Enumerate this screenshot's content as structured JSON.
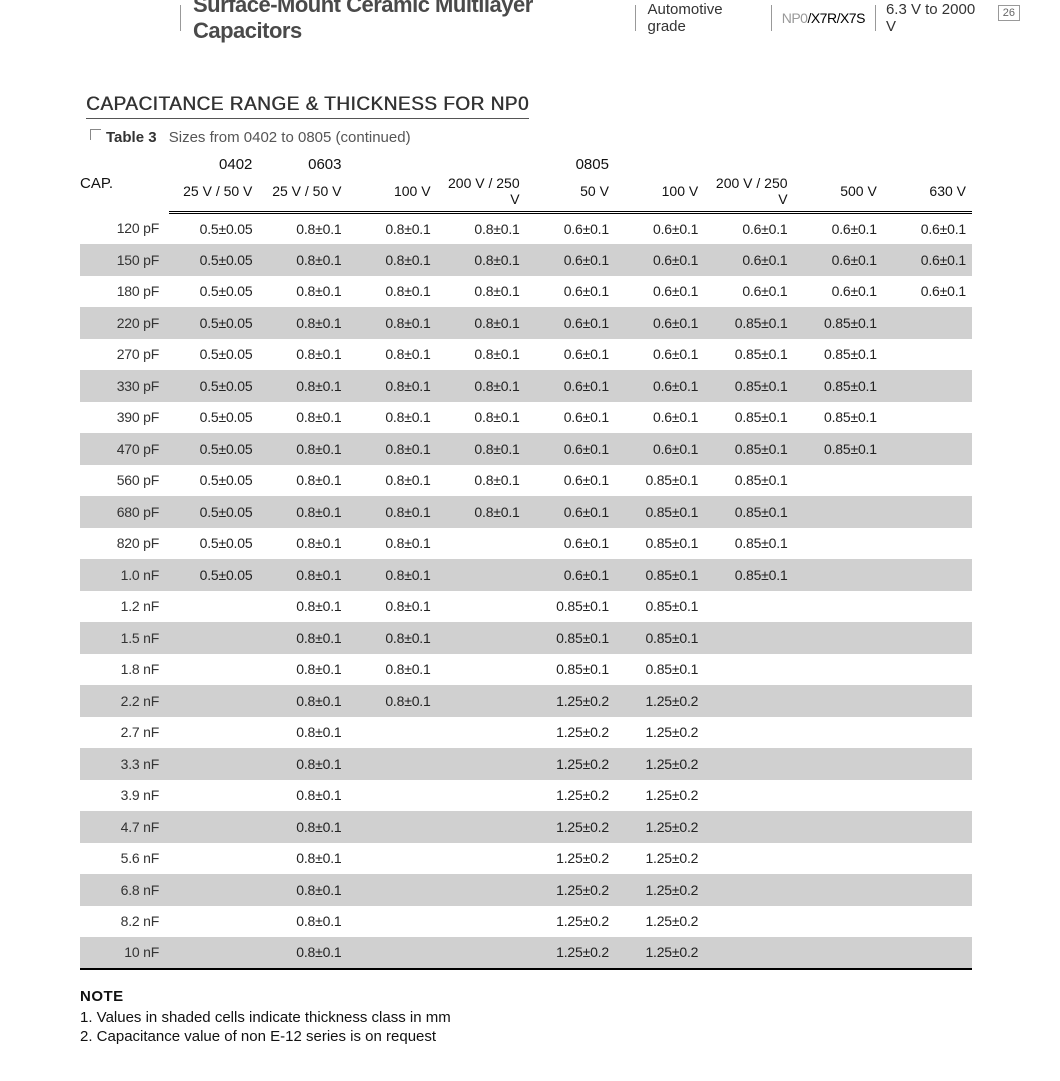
{
  "header": {
    "title": "Surface-Mount Ceramic Multilayer Capacitors",
    "grade": "Automotive grade",
    "dielectric_npo": "NP0",
    "dielectric_rest": "/X7R/X7S",
    "voltage": "6.3 V to 2000 V",
    "page": "26"
  },
  "section": {
    "title": "CAPACITANCE RANGE & THICKNESS FOR NP0",
    "table_num": "Table 3",
    "table_desc": "Sizes from 0402 to 0805 (continued)"
  },
  "table": {
    "cap_label": "CAP.",
    "sizes": [
      "0402",
      "0603",
      "0805"
    ],
    "voltages": [
      "25 V / 50 V",
      "25 V / 50 V",
      "100 V",
      "200 V / 250 V",
      "50 V",
      "100 V",
      "200 V / 250 V",
      "500 V",
      "630 V"
    ],
    "rows": [
      {
        "cap": "120 pF",
        "v": [
          "0.5±0.05",
          "0.8±0.1",
          "0.8±0.1",
          "0.8±0.1",
          "0.6±0.1",
          "0.6±0.1",
          "0.6±0.1",
          "0.6±0.1",
          "0.6±0.1"
        ]
      },
      {
        "cap": "150 pF",
        "v": [
          "0.5±0.05",
          "0.8±0.1",
          "0.8±0.1",
          "0.8±0.1",
          "0.6±0.1",
          "0.6±0.1",
          "0.6±0.1",
          "0.6±0.1",
          "0.6±0.1"
        ]
      },
      {
        "cap": "180 pF",
        "v": [
          "0.5±0.05",
          "0.8±0.1",
          "0.8±0.1",
          "0.8±0.1",
          "0.6±0.1",
          "0.6±0.1",
          "0.6±0.1",
          "0.6±0.1",
          "0.6±0.1"
        ]
      },
      {
        "cap": "220 pF",
        "v": [
          "0.5±0.05",
          "0.8±0.1",
          "0.8±0.1",
          "0.8±0.1",
          "0.6±0.1",
          "0.6±0.1",
          "0.85±0.1",
          "0.85±0.1",
          ""
        ]
      },
      {
        "cap": "270 pF",
        "v": [
          "0.5±0.05",
          "0.8±0.1",
          "0.8±0.1",
          "0.8±0.1",
          "0.6±0.1",
          "0.6±0.1",
          "0.85±0.1",
          "0.85±0.1",
          ""
        ]
      },
      {
        "cap": "330 pF",
        "v": [
          "0.5±0.05",
          "0.8±0.1",
          "0.8±0.1",
          "0.8±0.1",
          "0.6±0.1",
          "0.6±0.1",
          "0.85±0.1",
          "0.85±0.1",
          ""
        ]
      },
      {
        "cap": "390 pF",
        "v": [
          "0.5±0.05",
          "0.8±0.1",
          "0.8±0.1",
          "0.8±0.1",
          "0.6±0.1",
          "0.6±0.1",
          "0.85±0.1",
          "0.85±0.1",
          ""
        ]
      },
      {
        "cap": "470 pF",
        "v": [
          "0.5±0.05",
          "0.8±0.1",
          "0.8±0.1",
          "0.8±0.1",
          "0.6±0.1",
          "0.6±0.1",
          "0.85±0.1",
          "0.85±0.1",
          ""
        ]
      },
      {
        "cap": "560 pF",
        "v": [
          "0.5±0.05",
          "0.8±0.1",
          "0.8±0.1",
          "0.8±0.1",
          "0.6±0.1",
          "0.85±0.1",
          "0.85±0.1",
          "",
          ""
        ]
      },
      {
        "cap": "680 pF",
        "v": [
          "0.5±0.05",
          "0.8±0.1",
          "0.8±0.1",
          "0.8±0.1",
          "0.6±0.1",
          "0.85±0.1",
          "0.85±0.1",
          "",
          ""
        ]
      },
      {
        "cap": "820 pF",
        "v": [
          "0.5±0.05",
          "0.8±0.1",
          "0.8±0.1",
          "",
          "0.6±0.1",
          "0.85±0.1",
          "0.85±0.1",
          "",
          ""
        ]
      },
      {
        "cap": "1.0 nF",
        "v": [
          "0.5±0.05",
          "0.8±0.1",
          "0.8±0.1",
          "",
          "0.6±0.1",
          "0.85±0.1",
          "0.85±0.1",
          "",
          ""
        ]
      },
      {
        "cap": "1.2 nF",
        "v": [
          "",
          "0.8±0.1",
          "0.8±0.1",
          "",
          "0.85±0.1",
          "0.85±0.1",
          "",
          "",
          ""
        ]
      },
      {
        "cap": "1.5 nF",
        "v": [
          "",
          "0.8±0.1",
          "0.8±0.1",
          "",
          "0.85±0.1",
          "0.85±0.1",
          "",
          "",
          ""
        ]
      },
      {
        "cap": "1.8 nF",
        "v": [
          "",
          "0.8±0.1",
          "0.8±0.1",
          "",
          "0.85±0.1",
          "0.85±0.1",
          "",
          "",
          ""
        ]
      },
      {
        "cap": "2.2 nF",
        "v": [
          "",
          "0.8±0.1",
          "0.8±0.1",
          "",
          "1.25±0.2",
          "1.25±0.2",
          "",
          "",
          ""
        ]
      },
      {
        "cap": "2.7 nF",
        "v": [
          "",
          "0.8±0.1",
          "",
          "",
          "1.25±0.2",
          "1.25±0.2",
          "",
          "",
          ""
        ]
      },
      {
        "cap": "3.3 nF",
        "v": [
          "",
          "0.8±0.1",
          "",
          "",
          "1.25±0.2",
          "1.25±0.2",
          "",
          "",
          ""
        ]
      },
      {
        "cap": "3.9 nF",
        "v": [
          "",
          "0.8±0.1",
          "",
          "",
          "1.25±0.2",
          "1.25±0.2",
          "",
          "",
          ""
        ]
      },
      {
        "cap": "4.7 nF",
        "v": [
          "",
          "0.8±0.1",
          "",
          "",
          "1.25±0.2",
          "1.25±0.2",
          "",
          "",
          ""
        ]
      },
      {
        "cap": "5.6 nF",
        "v": [
          "",
          "0.8±0.1",
          "",
          "",
          "1.25±0.2",
          "1.25±0.2",
          "",
          "",
          ""
        ]
      },
      {
        "cap": "6.8 nF",
        "v": [
          "",
          "0.8±0.1",
          "",
          "",
          "1.25±0.2",
          "1.25±0.2",
          "",
          "",
          ""
        ]
      },
      {
        "cap": "8.2 nF",
        "v": [
          "",
          "0.8±0.1",
          "",
          "",
          "1.25±0.2",
          "1.25±0.2",
          "",
          "",
          ""
        ]
      },
      {
        "cap": "10 nF",
        "v": [
          "",
          "0.8±0.1",
          "",
          "",
          "1.25±0.2",
          "1.25±0.2",
          "",
          "",
          ""
        ]
      }
    ]
  },
  "notes": {
    "title": "NOTE",
    "items": [
      "1.  Values in shaded cells indicate thickness class in mm",
      "2.  Capacitance value of non E-12 series is on request"
    ]
  }
}
